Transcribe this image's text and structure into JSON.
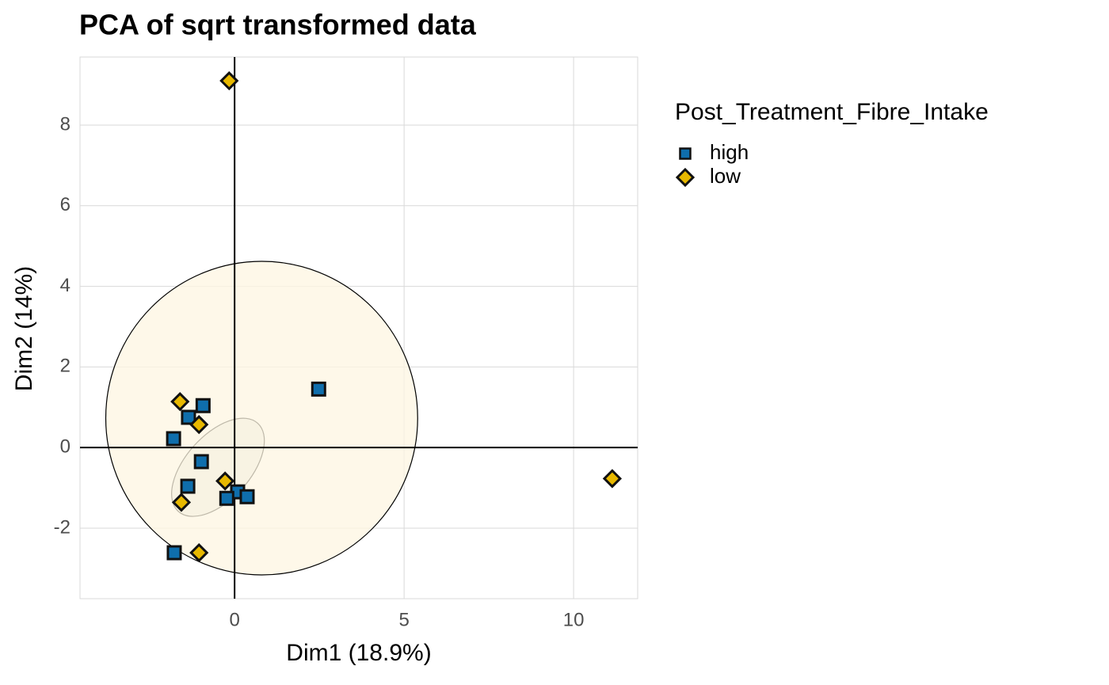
{
  "chart_data": {
    "type": "scatter",
    "title": "PCA of sqrt transformed data",
    "x_label": "Dim1 (18.9%)",
    "y_label": "Dim2 (14%)",
    "legend_title": "Post_Treatment_Fibre_Intake",
    "legend_position": "right",
    "grid": true,
    "xlim": [
      -4.56,
      11.89
    ],
    "ylim": [
      -3.75,
      9.69
    ],
    "xticks": [
      0,
      5,
      10
    ],
    "yticks": [
      -2,
      0,
      2,
      4,
      6,
      8
    ],
    "series": [
      {
        "name": "high",
        "color": "#0f6eac",
        "marker": "square",
        "x": [
          2.48,
          -0.93,
          -1.36,
          -1.8,
          -0.98,
          -1.38,
          0.09,
          0.37,
          -0.23,
          -1.78
        ],
        "values": [
          1.45,
          1.04,
          0.75,
          0.22,
          -0.35,
          -0.96,
          -1.1,
          -1.22,
          -1.26,
          -2.61
        ],
        "ellipse": {
          "cx": -0.49,
          "cy": -0.49,
          "rx": 1.75,
          "ry": 0.8,
          "angle": -48,
          "fill": "#dde6dc"
        }
      },
      {
        "name": "low",
        "color": "#e7b800",
        "marker": "diamond",
        "x": [
          -0.16,
          11.14,
          -1.61,
          -1.05,
          -0.28,
          -1.57,
          -1.05
        ],
        "values": [
          9.1,
          -0.77,
          1.14,
          0.57,
          -0.83,
          -1.36,
          -2.61
        ],
        "ellipse": {
          "cx": 0.8,
          "cy": 0.73,
          "rx": 4.6,
          "ry": 3.89,
          "angle": 0,
          "fill": "#fdf6e2"
        }
      }
    ]
  }
}
